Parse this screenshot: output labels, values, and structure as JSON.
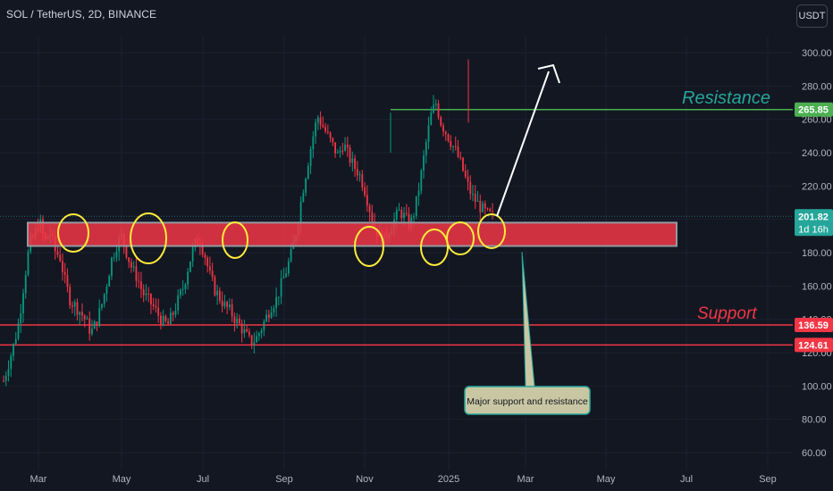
{
  "header": {
    "symbol_title": "SOL / TetherUS, 2D, BINANCE",
    "currency_button": "USDT"
  },
  "chart_data": {
    "type": "candlestick",
    "x_ticks": [
      "Mar",
      "May",
      "Jul",
      "Sep",
      "Nov",
      "2025",
      "Mar",
      "May",
      "Jul",
      "Sep"
    ],
    "y_ticks": [
      60,
      80,
      100,
      120,
      140,
      160,
      180,
      200,
      220,
      240,
      260,
      280,
      300
    ],
    "ylim": [
      52,
      318
    ],
    "price_labels": [
      {
        "name": "resistance",
        "value": 265.85,
        "text": "265.85",
        "color": "#4caf50"
      },
      {
        "name": "current",
        "value": 201.82,
        "text": "201.82",
        "sub": "1d 16h",
        "color": "#26a69a"
      },
      {
        "name": "support-1",
        "value": 136.59,
        "text": "136.59",
        "color": "#f23645"
      },
      {
        "name": "support-2",
        "value": 124.61,
        "text": "124.61",
        "color": "#f23645"
      }
    ],
    "zone": {
      "low": 184,
      "high": 198
    },
    "levels": [
      {
        "name": "resistance",
        "value": 265.85
      },
      {
        "name": "support-1",
        "value": 136.59
      },
      {
        "name": "support-2",
        "value": 124.61
      }
    ],
    "resistance_label": "Resistance",
    "support_label": "Support",
    "note": "Major support and resistance",
    "candle_anchors": [
      [
        99,
        103
      ],
      [
        104,
        114
      ],
      [
        108,
        125
      ],
      [
        112,
        139
      ],
      [
        115,
        163
      ],
      [
        118,
        184
      ],
      [
        121,
        191
      ],
      [
        123,
        199
      ],
      [
        125,
        186
      ],
      [
        127,
        193
      ],
      [
        129,
        181
      ],
      [
        131,
        177
      ],
      [
        133,
        162
      ],
      [
        135,
        151
      ],
      [
        137,
        148
      ],
      [
        139,
        144
      ],
      [
        141,
        139
      ],
      [
        143,
        132
      ],
      [
        145,
        138
      ],
      [
        147,
        148
      ],
      [
        149,
        161
      ],
      [
        151,
        176
      ],
      [
        153,
        185
      ],
      [
        155,
        190
      ],
      [
        157,
        179
      ],
      [
        159,
        170
      ],
      [
        161,
        165
      ],
      [
        163,
        156
      ],
      [
        165,
        152
      ],
      [
        167,
        148
      ],
      [
        169,
        143
      ],
      [
        171,
        138
      ],
      [
        173,
        137
      ],
      [
        175,
        144
      ],
      [
        177,
        152
      ],
      [
        179,
        160
      ],
      [
        181,
        173
      ],
      [
        183,
        184
      ],
      [
        185,
        188
      ],
      [
        187,
        180
      ],
      [
        189,
        167
      ],
      [
        191,
        158
      ],
      [
        193,
        153
      ],
      [
        195,
        148
      ],
      [
        197,
        145
      ],
      [
        199,
        140
      ],
      [
        201,
        136
      ],
      [
        203,
        131
      ],
      [
        205,
        126
      ],
      [
        207,
        128
      ],
      [
        209,
        134
      ],
      [
        211,
        141
      ],
      [
        213,
        148
      ],
      [
        215,
        152
      ],
      [
        217,
        161
      ],
      [
        219,
        170
      ],
      [
        221,
        180
      ],
      [
        223,
        195
      ],
      [
        225,
        215
      ],
      [
        227,
        232
      ],
      [
        229,
        248
      ],
      [
        231,
        262
      ],
      [
        233,
        256
      ],
      [
        235,
        250
      ],
      [
        237,
        244
      ],
      [
        239,
        238
      ],
      [
        241,
        246
      ],
      [
        243,
        238
      ],
      [
        245,
        232
      ],
      [
        247,
        228
      ],
      [
        249,
        220
      ],
      [
        251,
        208
      ],
      [
        253,
        196
      ],
      [
        255,
        190
      ],
      [
        257,
        188
      ],
      [
        259,
        194
      ],
      [
        261,
        200
      ],
      [
        263,
        205
      ],
      [
        265,
        201
      ],
      [
        267,
        196
      ],
      [
        269,
        207
      ],
      [
        271,
        224
      ],
      [
        273,
        244
      ],
      [
        275,
        262
      ],
      [
        277,
        270
      ],
      [
        279,
        258
      ],
      [
        281,
        252
      ],
      [
        283,
        246
      ],
      [
        285,
        240
      ],
      [
        287,
        232
      ],
      [
        289,
        222
      ],
      [
        291,
        214
      ],
      [
        293,
        210
      ],
      [
        295,
        206
      ],
      [
        297,
        203
      ],
      [
        298,
        202
      ]
    ]
  }
}
